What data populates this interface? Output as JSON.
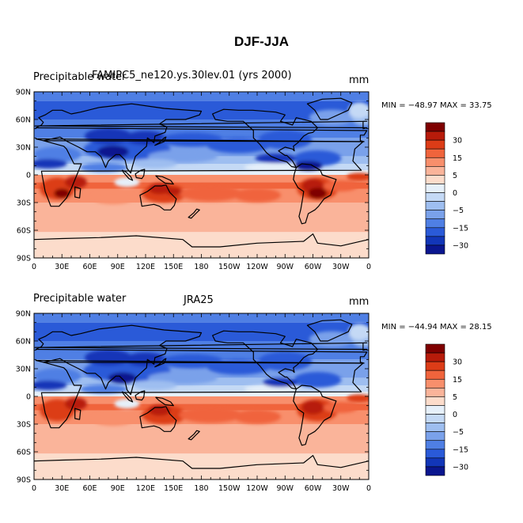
{
  "title": "DJF-JJA",
  "panels": [
    {
      "variable": "Precipitable water",
      "case": "FAMIPC5_ne120.ys.30lev.01 (yrs 2000)",
      "units": "mm",
      "min_max": "MIN = −48.97 MAX =  33.75"
    },
    {
      "variable": "Precipitable water",
      "case": "JRA25",
      "units": "mm",
      "min_max": "MIN = −44.94 MAX =  28.15"
    }
  ],
  "lat_ticks": [
    "90N",
    "60N",
    "30N",
    "0",
    "30S",
    "60S",
    "90S"
  ],
  "lon_ticks": [
    "0",
    "30E",
    "60E",
    "90E",
    "120E",
    "150E",
    "180",
    "150W",
    "120W",
    "90W",
    "60W",
    "30W",
    "0"
  ],
  "colorbar": {
    "labels": [
      "30",
      "15",
      "5",
      "0",
      "−5",
      "−15",
      "−30"
    ],
    "colors": [
      "#7f0000",
      "#b71b0a",
      "#dc3c17",
      "#f0643c",
      "#f88f6c",
      "#fab49a",
      "#fcdccb",
      "#e6f0fa",
      "#c4d9f5",
      "#9ebef0",
      "#7aa1ea",
      "#4f7fe4",
      "#2a5ad8",
      "#1236b8",
      "#0a168f"
    ]
  }
}
